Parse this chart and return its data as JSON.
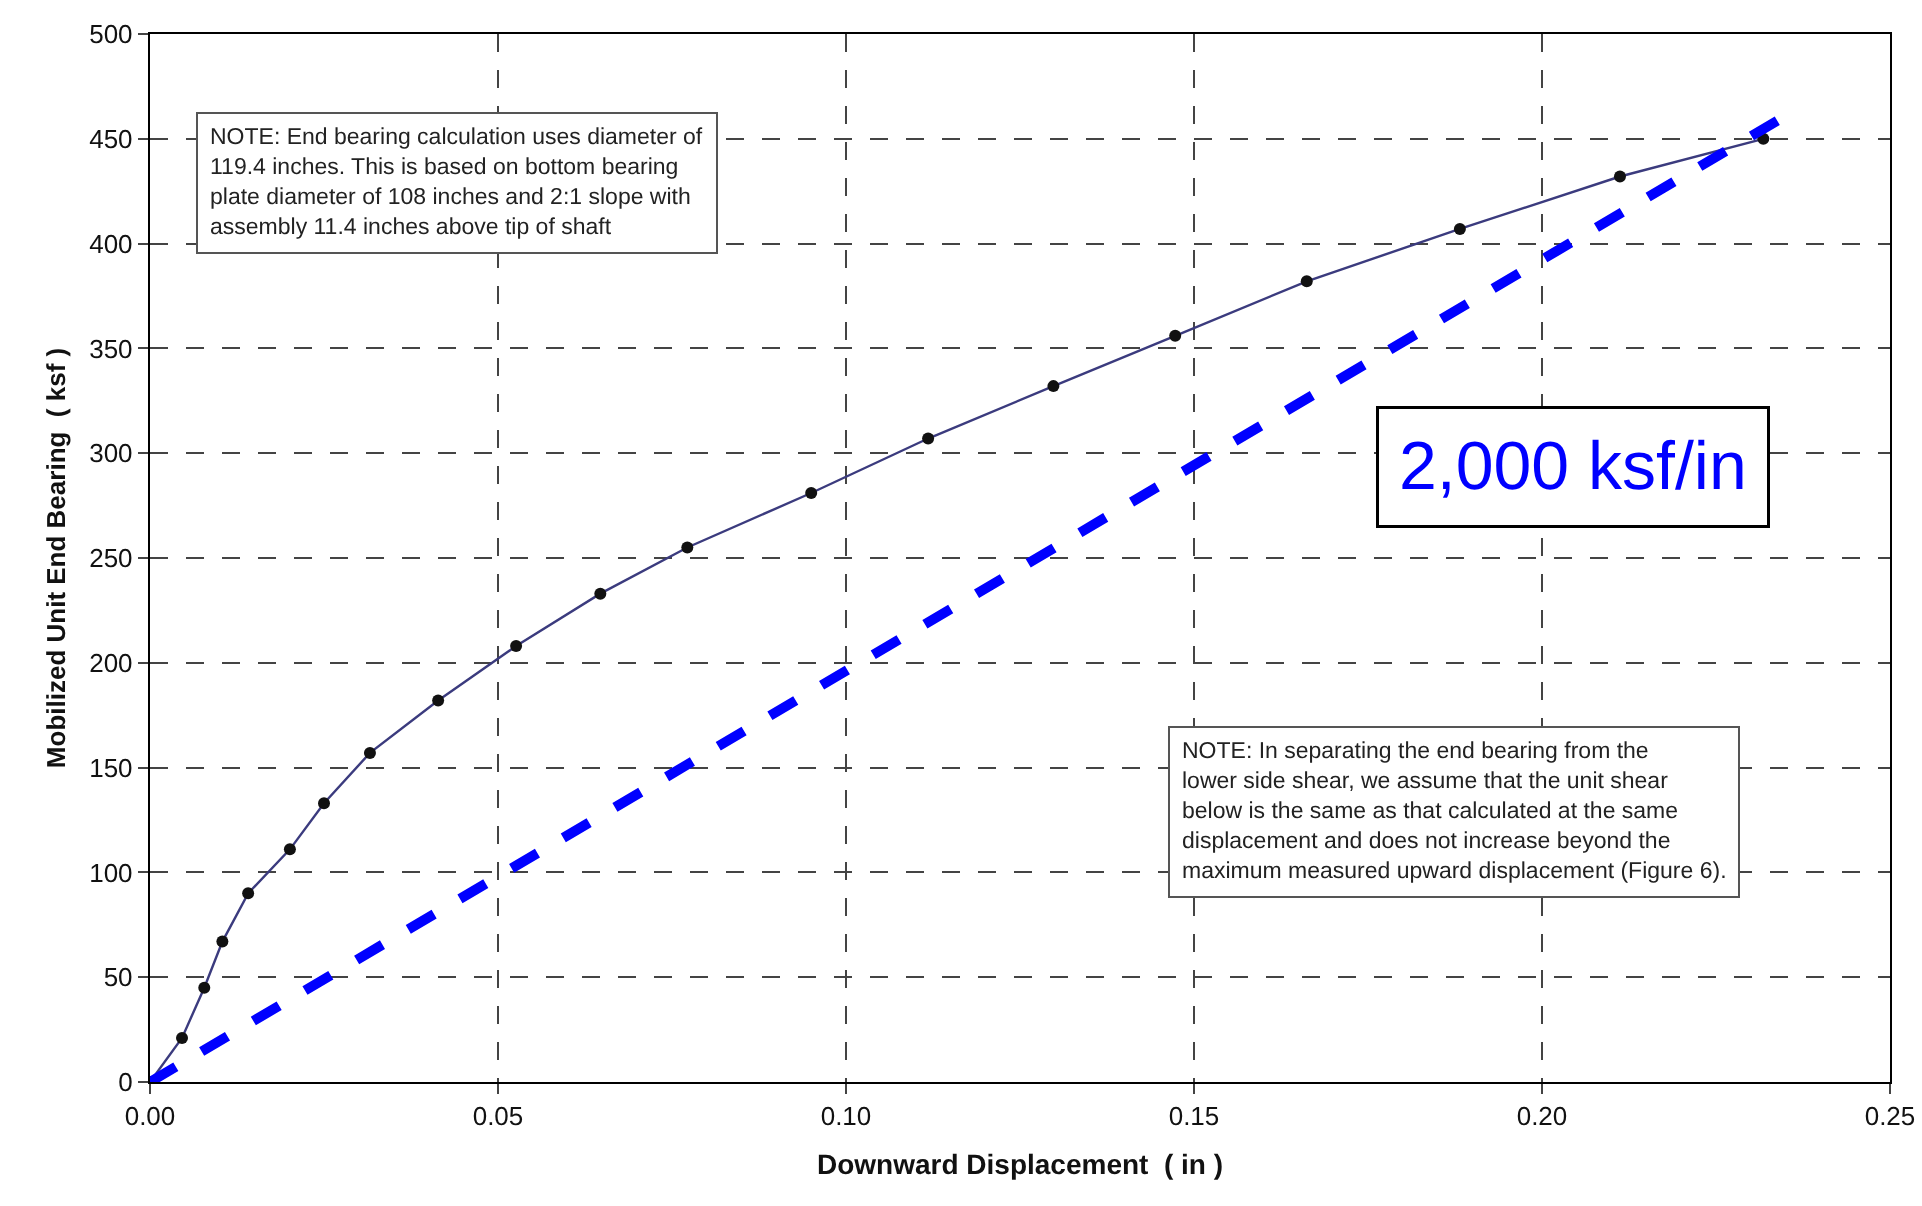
{
  "chart_data": {
    "type": "line",
    "xlabel": "Downward Displacement  ( in )",
    "ylabel": "Mobilized Unit End Bearing  ( ksf )",
    "xlim": [
      0,
      0.25
    ],
    "xticks": [
      {
        "value": 0,
        "label": "0.00"
      },
      0.05,
      {
        "value": 0.1,
        "label": "0.10"
      },
      0.15,
      {
        "value": 0.2,
        "label": "0.20"
      },
      0.25
    ],
    "ylim": [
      0,
      500
    ],
    "yticks": [
      0,
      50,
      100,
      150,
      200,
      250,
      300,
      350,
      400,
      450,
      500
    ],
    "grid": true,
    "legend": false,
    "series": [
      {
        "color": "#3b3b7e",
        "marker": "circle",
        "line_style": "solid",
        "x": [
          0,
          0.0046,
          0.0078,
          0.0104,
          0.0141,
          0.0201,
          0.025,
          0.0316,
          0.0414,
          0.0526,
          0.0647,
          0.0772,
          0.095,
          0.1118,
          0.1298,
          0.1473,
          0.1662,
          0.1882,
          0.2112,
          0.2318
        ],
        "values": [
          0,
          21,
          45,
          67,
          90,
          111,
          133,
          157,
          182,
          208,
          233,
          255,
          281,
          307,
          332,
          356,
          382,
          407,
          432,
          450
        ]
      },
      {
        "color": "#0000ff",
        "marker": "none",
        "line_style": "dashed",
        "x": [
          0,
          0.2345
        ],
        "values": [
          0,
          460
        ]
      }
    ],
    "annotations": [
      "NOTE: End bearing calculation uses diameter of 119.4 inches. This is based on bottom bearing plate diameter of 108 inches and 2:1 slope with assembly 11.4 inches above tip of shaft",
      "NOTE: In separating the end bearing from the lower side shear, we assume that the unit shear below is the same as that calculated at the same displacement and does not increase beyond the maximum measured upward displacement (Figure 6).",
      "2,000 ksf/in"
    ]
  }
}
